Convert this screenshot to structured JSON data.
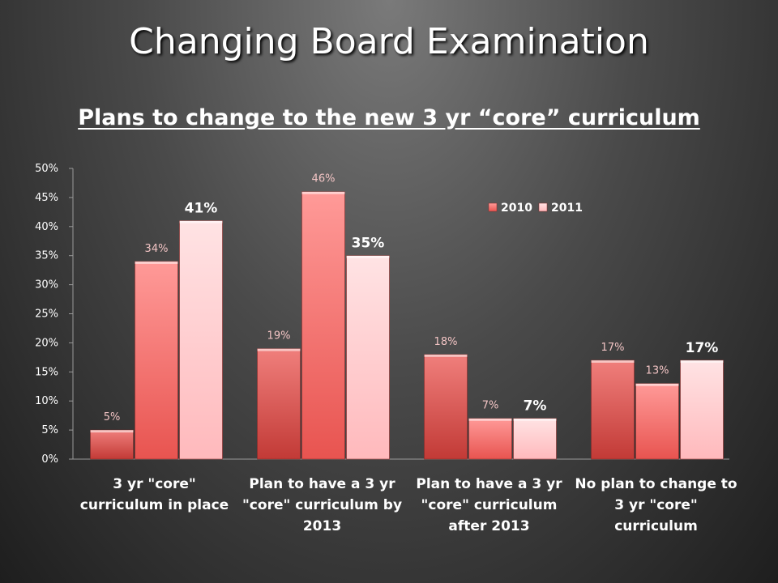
{
  "slide_title": "Changing Board Examination",
  "chart_data": {
    "type": "bar",
    "title": "Plans to change to the new 3 yr “core” curriculum",
    "categories": [
      "3 yr \"core\" curriculum in place",
      "Plan to have a 3 yr \"core\" curriculum by 2013",
      "Plan to have a 3 yr \"core\" curriculum after 2013",
      "No plan to change to 3 yr \"core\" curriculum"
    ],
    "series": [
      {
        "values": [
          5,
          19,
          18,
          17
        ],
        "labels": [
          "5%",
          "19%",
          "18%",
          "17%"
        ],
        "color": "#d9403c"
      },
      {
        "name": "2010",
        "values": [
          34,
          46,
          7,
          13
        ],
        "labels": [
          "34%",
          "46%",
          "7%",
          "13%"
        ],
        "color": "#f05a56"
      },
      {
        "name": "2011",
        "values": [
          41,
          35,
          7,
          17
        ],
        "labels": [
          "41%",
          "35%",
          "7%",
          "17%"
        ],
        "color": "#ffc4c6"
      }
    ],
    "yticks": [
      "0%",
      "5%",
      "10%",
      "15%",
      "20%",
      "25%",
      "30%",
      "35%",
      "40%",
      "45%",
      "50%"
    ],
    "ylim": [
      0,
      50
    ],
    "legend": "top-right",
    "grid": false
  }
}
